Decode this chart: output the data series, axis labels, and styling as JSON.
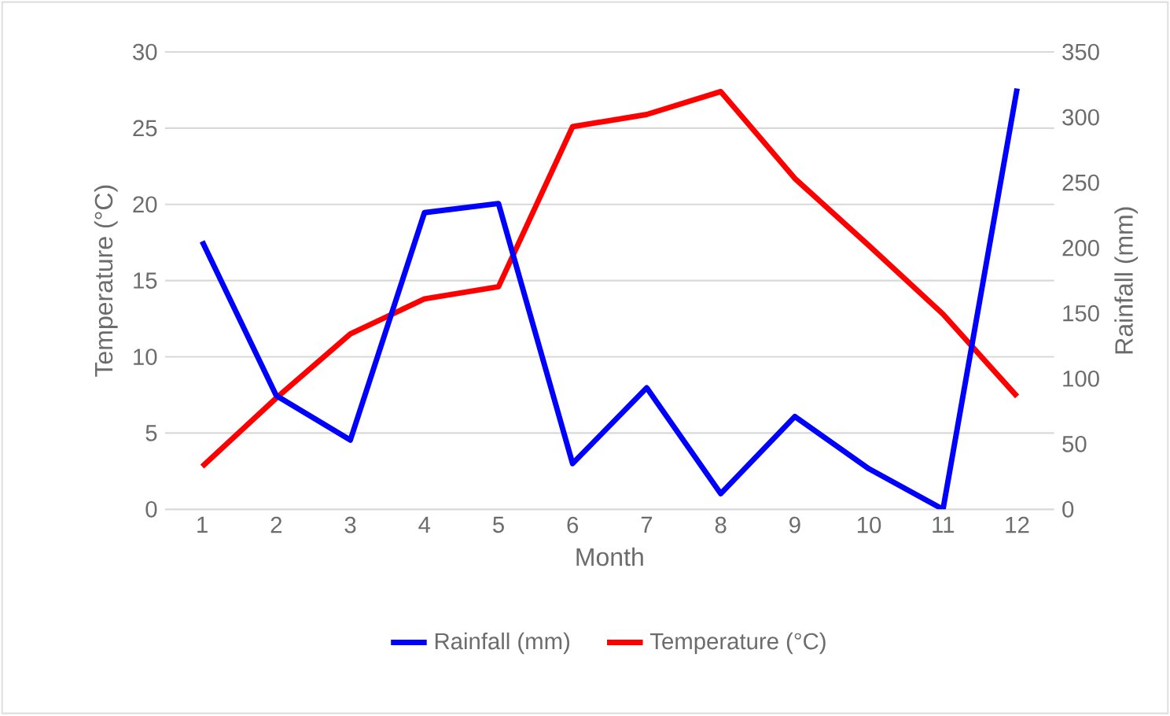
{
  "chart_data": {
    "type": "line",
    "xlabel": "Month",
    "ylabel": "Temperature (°C)",
    "y2label": "Rainfall (mm)",
    "categories": [
      "1",
      "2",
      "3",
      "4",
      "5",
      "6",
      "7",
      "8",
      "9",
      "10",
      "11",
      "12"
    ],
    "series": [
      {
        "name": "Rainfall (mm)",
        "color": "#0000ff",
        "axis": "y2",
        "values": [
          205,
          87,
          53,
          227,
          234,
          35,
          93,
          12,
          71,
          31,
          0,
          322
        ]
      },
      {
        "name": "Temperature (°C)",
        "color": "#ff0000",
        "values": [
          2.8,
          7.3,
          11.5,
          13.8,
          14.6,
          25.1,
          25.9,
          27.4,
          21.7,
          17.3,
          12.8,
          7.4
        ]
      }
    ],
    "ylim": [
      0,
      30
    ],
    "yticks": [
      0,
      5,
      10,
      15,
      20,
      25,
      30
    ],
    "y2lim": [
      0,
      350
    ],
    "y2ticks": [
      0,
      50,
      100,
      150,
      200,
      250,
      300,
      350
    ],
    "grid": "y",
    "legend": "bottom",
    "marker": "none",
    "line_style": "solid"
  }
}
